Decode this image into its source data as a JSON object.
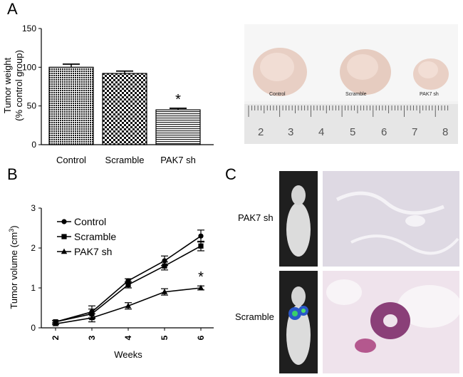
{
  "panels": {
    "a": "A",
    "b": "B",
    "c": "C"
  },
  "chart_data": [
    {
      "type": "bar",
      "ylabel_line1": "Tumor weight",
      "ylabel_line2": "(% control group)",
      "categories": [
        "Control",
        "Scramble",
        "PAK7 sh"
      ],
      "values": [
        100,
        92,
        45
      ],
      "errors": [
        4,
        3,
        2
      ],
      "patterns": [
        "dense-dots",
        "checker",
        "horizontal-lines"
      ],
      "ylim": [
        0,
        150
      ],
      "yticks": [
        "0",
        "50",
        "100",
        "150"
      ],
      "annotation": "*"
    },
    {
      "type": "line",
      "xlabel": "Weeks",
      "ylabel": "Tumor volume (cm",
      "ylabel_sup": "3",
      "ylabel_close": ")",
      "x": [
        2,
        3,
        4,
        5,
        6
      ],
      "xticks": [
        "2",
        "3",
        "4",
        "5",
        "6"
      ],
      "yticks": [
        "0",
        "1",
        "2",
        "3"
      ],
      "ylim": [
        0,
        3
      ],
      "series": [
        {
          "name": "Control",
          "marker": "circle",
          "values": [
            0.15,
            0.4,
            1.18,
            1.68,
            2.3
          ],
          "errors": [
            0.03,
            0.15,
            0.05,
            0.12,
            0.15
          ]
        },
        {
          "name": "Scramble",
          "marker": "square",
          "values": [
            0.15,
            0.35,
            1.08,
            1.55,
            2.05
          ],
          "errors": [
            0.03,
            0.12,
            0.08,
            0.1,
            0.12
          ]
        },
        {
          "name": "PAK7 sh",
          "marker": "triangle",
          "values": [
            0.1,
            0.25,
            0.55,
            0.9,
            1.0
          ],
          "errors": [
            0.02,
            0.1,
            0.08,
            0.08,
            0.05
          ]
        }
      ],
      "annotation": "*"
    }
  ],
  "photo": {
    "labels": [
      "Control",
      "Scramble",
      "PAK7 sh"
    ],
    "ruler": [
      "2",
      "3",
      "4",
      "5",
      "6",
      "7",
      "8"
    ]
  },
  "histology": {
    "row1": "PAK7 sh",
    "row2": "Scramble"
  }
}
